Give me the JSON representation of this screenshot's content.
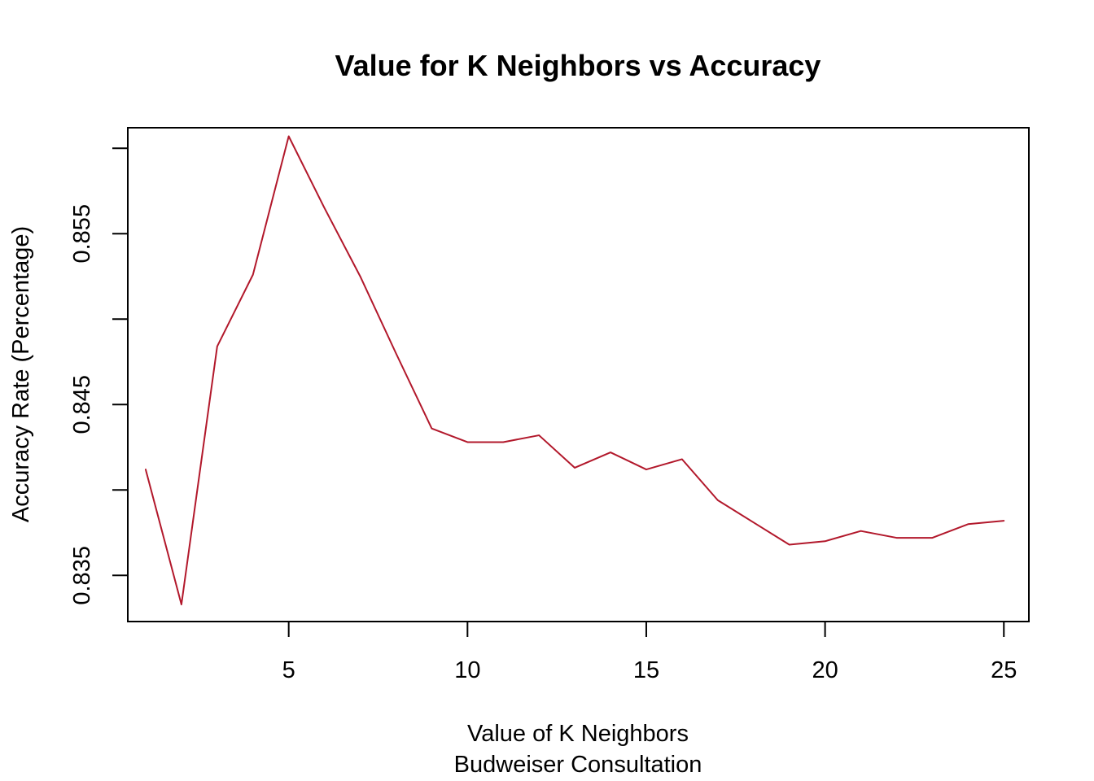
{
  "chart_data": {
    "type": "line",
    "title": "Value for K Neighbors vs Accuracy",
    "xlabel": "Value of K Neighbors",
    "subtitle": "Budweiser Consultation",
    "ylabel": "Accuracy Rate (Percentage)",
    "xlim": [
      0.5,
      25.7
    ],
    "ylim": [
      0.8323,
      0.8612
    ],
    "x_ticks": [
      5,
      10,
      15,
      20,
      25
    ],
    "x_tick_labels": [
      "5",
      "10",
      "15",
      "20",
      "25"
    ],
    "y_ticks": [
      0.835,
      0.84,
      0.845,
      0.85,
      0.855,
      0.86
    ],
    "y_tick_labels": [
      "0.835",
      "",
      "0.845",
      "",
      "0.855",
      ""
    ],
    "grid": false,
    "line_color": "#b2182b",
    "series": [
      {
        "x": [
          1,
          2,
          3,
          4,
          5,
          6,
          7,
          8,
          9,
          10,
          11,
          12,
          13,
          14,
          15,
          16,
          17,
          18,
          19,
          20,
          21,
          22,
          23,
          24,
          25
        ],
        "values": [
          0.8412,
          0.8333,
          0.8484,
          0.8526,
          0.8607,
          0.8565,
          0.8525,
          0.848,
          0.8436,
          0.8428,
          0.8428,
          0.8432,
          0.8413,
          0.8422,
          0.8412,
          0.8418,
          0.8394,
          0.8381,
          0.8368,
          0.837,
          0.8376,
          0.8372,
          0.8372,
          0.838,
          0.8382
        ]
      }
    ]
  }
}
